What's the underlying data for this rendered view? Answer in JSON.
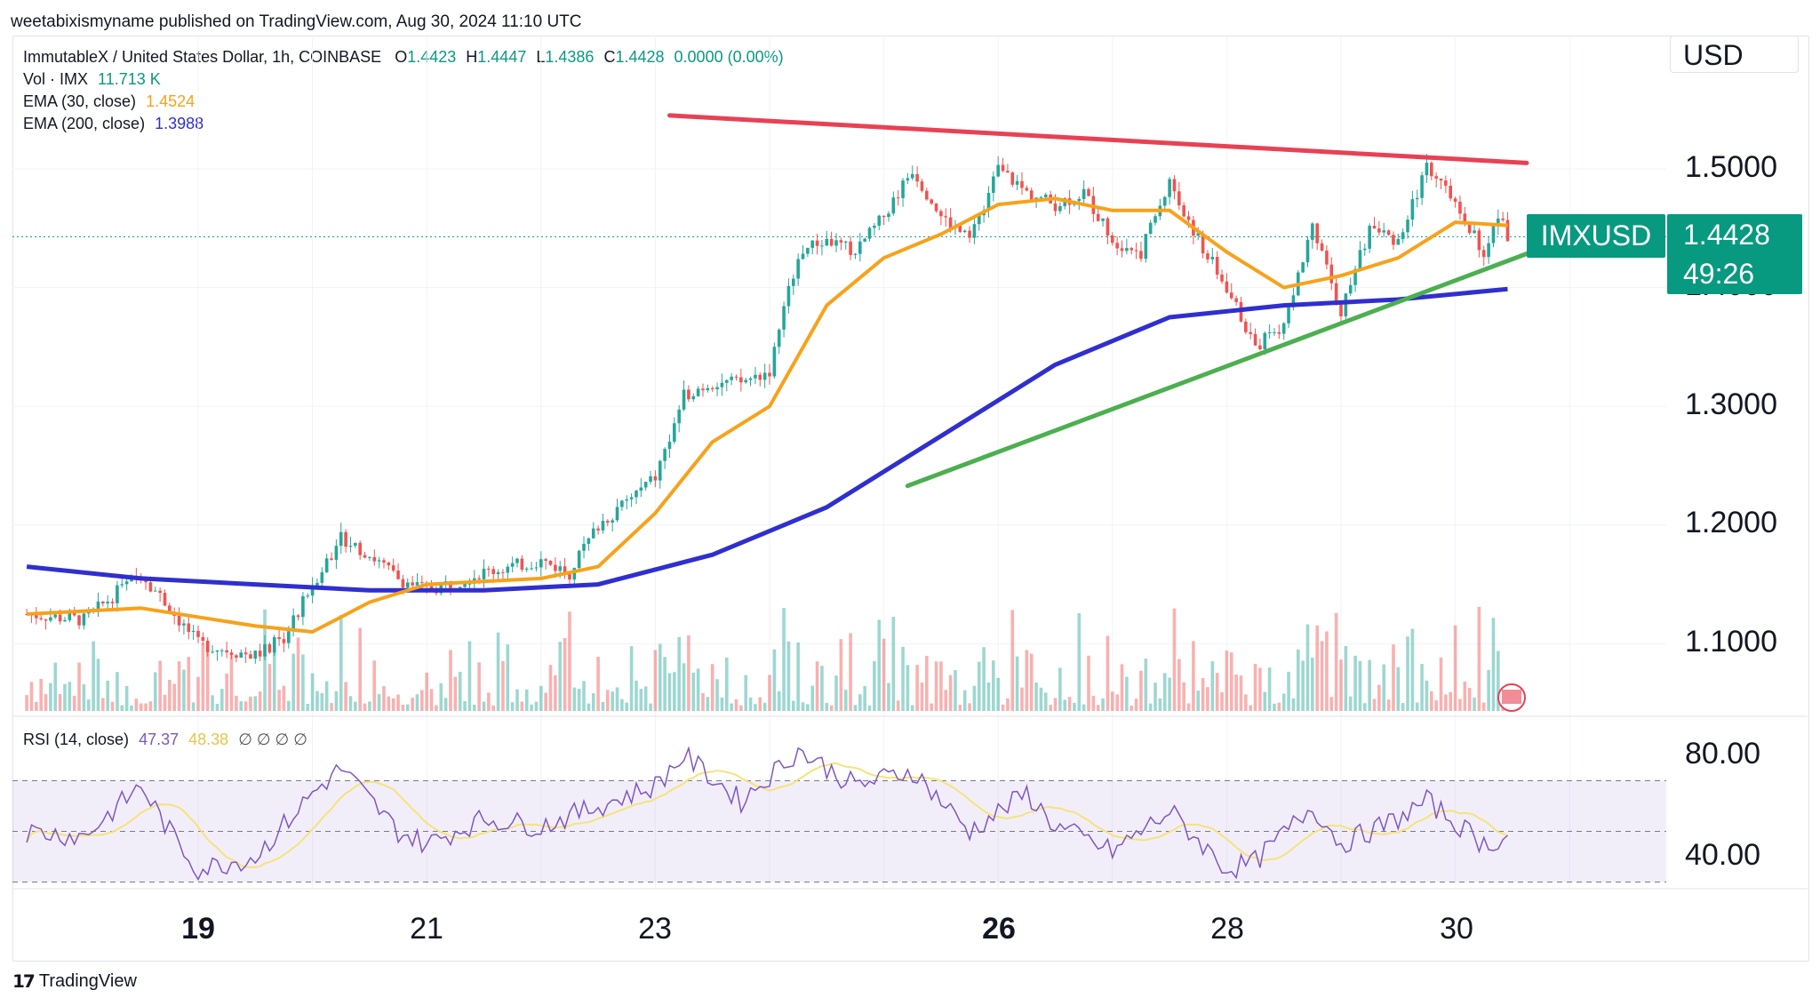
{
  "header": {
    "published": "weetabixismyname published on TradingView.com, Aug 30, 2024 11:10 UTC"
  },
  "legend": {
    "symbol": "ImmutableX / United States Dollar, 1h, COINBASE",
    "o_label": "O",
    "o": "1.4423",
    "h_label": "H",
    "h": "1.4447",
    "l_label": "L",
    "l": "1.4386",
    "c_label": "C",
    "c": "1.4428",
    "change": "0.0000 (0.00%)",
    "vol_label": "Vol · IMX",
    "vol": "11.713 K",
    "ema30_label": "EMA (30, close)",
    "ema30": "1.4524",
    "ema200_label": "EMA (200, close)",
    "ema200": "1.3988",
    "rsi_label": "RSI (14, close)",
    "rsi": "47.37",
    "rsi_ma": "48.38",
    "rsi_extra": "∅ ∅ ∅ ∅"
  },
  "currency_button": "USD",
  "price_axis": [
    "1.5000",
    "1.4000",
    "1.3000",
    "1.2000",
    "1.1000"
  ],
  "rsi_axis": [
    "80.00",
    "40.00"
  ],
  "time_axis": [
    {
      "label": "19",
      "bold": true
    },
    {
      "label": "21",
      "bold": false
    },
    {
      "label": "23",
      "bold": false
    },
    {
      "label": "26",
      "bold": true
    },
    {
      "label": "28",
      "bold": false
    },
    {
      "label": "30",
      "bold": false
    }
  ],
  "last_price": {
    "symbol": "IMXUSD",
    "price": "1.4428",
    "countdown": "49:26"
  },
  "footer": {
    "brand": "TradingView"
  },
  "colors": {
    "up": "#26a69a",
    "down": "#ef5350",
    "ema30": "#f7a21b",
    "ema200": "#2f2fd0",
    "resistance": "#e84155",
    "support": "#4caf50",
    "rsi_line": "#7e57c2",
    "rsi_ma": "#f5e37a",
    "tag": "#089981"
  },
  "chart_data": {
    "type": "candlestick",
    "title": "ImmutableX / United States Dollar, 1h, COINBASE",
    "x_range": [
      "Aug 17",
      "Aug 31"
    ],
    "y_range": [
      1.04,
      1.57
    ],
    "price_path": [
      [
        "Aug 17 12:00",
        1.125
      ],
      [
        "Aug 18 00:00",
        1.12
      ],
      [
        "Aug 18 12:00",
        1.16
      ],
      [
        "Aug 18 18:00",
        1.13
      ],
      [
        "Aug 19 00:00",
        1.1
      ],
      [
        "Aug 19 12:00",
        1.09
      ],
      [
        "Aug 19 18:00",
        1.105
      ],
      [
        "Aug 20 00:00",
        1.15
      ],
      [
        "Aug 20 06:00",
        1.19
      ],
      [
        "Aug 20 12:00",
        1.175
      ],
      [
        "Aug 20 18:00",
        1.155
      ],
      [
        "Aug 21 00:00",
        1.145
      ],
      [
        "Aug 21 12:00",
        1.16
      ],
      [
        "Aug 22 00:00",
        1.17
      ],
      [
        "Aug 22 06:00",
        1.16
      ],
      [
        "Aug 22 12:00",
        1.2
      ],
      [
        "Aug 22 18:00",
        1.22
      ],
      [
        "Aug 23 00:00",
        1.24
      ],
      [
        "Aug 23 06:00",
        1.31
      ],
      [
        "Aug 23 12:00",
        1.32
      ],
      [
        "Aug 23 18:00",
        1.32
      ],
      [
        "Aug 24 00:00",
        1.33
      ],
      [
        "Aug 24 06:00",
        1.43
      ],
      [
        "Aug 24 12:00",
        1.44
      ],
      [
        "Aug 24 18:00",
        1.43
      ],
      [
        "Aug 25 00:00",
        1.46
      ],
      [
        "Aug 25 06:00",
        1.5
      ],
      [
        "Aug 25 12:00",
        1.46
      ],
      [
        "Aug 25 18:00",
        1.44
      ],
      [
        "Aug 26 00:00",
        1.5
      ],
      [
        "Aug 26 06:00",
        1.48
      ],
      [
        "Aug 26 12:00",
        1.47
      ],
      [
        "Aug 26 18:00",
        1.48
      ],
      [
        "Aug 27 00:00",
        1.44
      ],
      [
        "Aug 27 06:00",
        1.43
      ],
      [
        "Aug 27 12:00",
        1.49
      ],
      [
        "Aug 27 18:00",
        1.44
      ],
      [
        "Aug 28 00:00",
        1.4
      ],
      [
        "Aug 28 06:00",
        1.35
      ],
      [
        "Aug 28 12:00",
        1.37
      ],
      [
        "Aug 28 18:00",
        1.45
      ],
      [
        "Aug 29 00:00",
        1.38
      ],
      [
        "Aug 29 06:00",
        1.45
      ],
      [
        "Aug 29 12:00",
        1.44
      ],
      [
        "Aug 29 18:00",
        1.5
      ],
      [
        "Aug 30 00:00",
        1.47
      ],
      [
        "Aug 30 06:00",
        1.43
      ],
      [
        "Aug 30 09:00",
        1.46
      ],
      [
        "Aug 30 11:00",
        1.4428
      ]
    ],
    "series": [
      {
        "name": "EMA (30, close)",
        "values": [
          [
            "Aug 17 12:00",
            1.125
          ],
          [
            "Aug 18 12:00",
            1.13
          ],
          [
            "Aug 19 12:00",
            1.115
          ],
          [
            "Aug 20 00:00",
            1.11
          ],
          [
            "Aug 20 12:00",
            1.135
          ],
          [
            "Aug 21 00:00",
            1.15
          ],
          [
            "Aug 22 00:00",
            1.155
          ],
          [
            "Aug 22 12:00",
            1.165
          ],
          [
            "Aug 23 00:00",
            1.21
          ],
          [
            "Aug 23 12:00",
            1.27
          ],
          [
            "Aug 24 00:00",
            1.3
          ],
          [
            "Aug 24 12:00",
            1.385
          ],
          [
            "Aug 25 00:00",
            1.425
          ],
          [
            "Aug 25 12:00",
            1.445
          ],
          [
            "Aug 26 00:00",
            1.47
          ],
          [
            "Aug 26 12:00",
            1.475
          ],
          [
            "Aug 27 00:00",
            1.465
          ],
          [
            "Aug 27 12:00",
            1.465
          ],
          [
            "Aug 28 00:00",
            1.43
          ],
          [
            "Aug 28 12:00",
            1.4
          ],
          [
            "Aug 29 00:00",
            1.41
          ],
          [
            "Aug 29 12:00",
            1.425
          ],
          [
            "Aug 30 00:00",
            1.455
          ],
          [
            "Aug 30 11:00",
            1.4524
          ]
        ]
      },
      {
        "name": "EMA (200, close)",
        "values": [
          [
            "Aug 17 12:00",
            1.165
          ],
          [
            "Aug 18 12:00",
            1.155
          ],
          [
            "Aug 19 12:00",
            1.15
          ],
          [
            "Aug 20 12:00",
            1.145
          ],
          [
            "Aug 21 12:00",
            1.145
          ],
          [
            "Aug 22 12:00",
            1.15
          ],
          [
            "Aug 23 12:00",
            1.175
          ],
          [
            "Aug 24 12:00",
            1.215
          ],
          [
            "Aug 25 12:00",
            1.275
          ],
          [
            "Aug 26 12:00",
            1.335
          ],
          [
            "Aug 27 12:00",
            1.375
          ],
          [
            "Aug 28 12:00",
            1.385
          ],
          [
            "Aug 29 12:00",
            1.39
          ],
          [
            "Aug 30 11:00",
            1.3988
          ]
        ]
      }
    ],
    "annotations": [
      {
        "type": "trendline",
        "role": "resistance",
        "from": [
          "Aug 23 03:00",
          1.545
        ],
        "to": [
          "Aug 30 15:00",
          1.505
        ]
      },
      {
        "type": "trendline",
        "role": "support",
        "from": [
          "Aug 25 05:00",
          1.233
        ],
        "to": [
          "Aug 30 16:00",
          1.43
        ]
      }
    ],
    "rsi": {
      "y_range": [
        20,
        100
      ],
      "overbought": 70,
      "oversold": 30,
      "mid": 50,
      "values": [
        [
          "Aug 17 12:00",
          50
        ],
        [
          "Aug 18 00:00",
          48
        ],
        [
          "Aug 18 12:00",
          68
        ],
        [
          "Aug 18 18:00",
          50
        ],
        [
          "Aug 19 00:00",
          35
        ],
        [
          "Aug 19 12:00",
          40
        ],
        [
          "Aug 20 00:00",
          65
        ],
        [
          "Aug 20 06:00",
          75
        ],
        [
          "Aug 20 18:00",
          50
        ],
        [
          "Aug 21 00:00",
          45
        ],
        [
          "Aug 21 12:00",
          55
        ],
        [
          "Aug 22 00:00",
          52
        ],
        [
          "Aug 22 12:00",
          60
        ],
        [
          "Aug 23 00:00",
          68
        ],
        [
          "Aug 23 06:00",
          80
        ],
        [
          "Aug 23 18:00",
          62
        ],
        [
          "Aug 24 06:00",
          82
        ],
        [
          "Aug 24 18:00",
          68
        ],
        [
          "Aug 25 06:00",
          74
        ],
        [
          "Aug 25 18:00",
          50
        ],
        [
          "Aug 26 06:00",
          65
        ],
        [
          "Aug 26 12:00",
          52
        ],
        [
          "Aug 27 00:00",
          42
        ],
        [
          "Aug 27 12:00",
          58
        ],
        [
          "Aug 28 00:00",
          35
        ],
        [
          "Aug 28 06:00",
          38
        ],
        [
          "Aug 28 18:00",
          60
        ],
        [
          "Aug 29 00:00",
          45
        ],
        [
          "Aug 29 12:00",
          55
        ],
        [
          "Aug 29 18:00",
          62
        ],
        [
          "Aug 30 06:00",
          45
        ],
        [
          "Aug 30 11:00",
          47.37
        ]
      ]
    }
  }
}
